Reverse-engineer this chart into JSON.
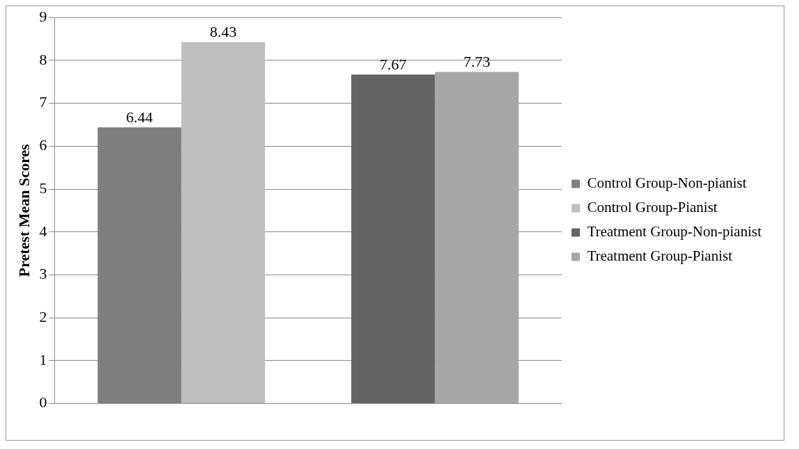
{
  "chart_data": {
    "type": "bar",
    "ylabel": "Pretest Mean Scores",
    "categories": [
      null,
      null
    ],
    "series": [
      {
        "name": "Control Group-Non-pianist",
        "color": "#7f7f7f",
        "values": [
          6.44,
          null
        ]
      },
      {
        "name": "Control Group-Pianist",
        "color": "#bfbfbf",
        "values": [
          8.43,
          null
        ]
      },
      {
        "name": "Treatment Group-Non-pianist",
        "color": "#636363",
        "values": [
          null,
          7.67
        ]
      },
      {
        "name": "Treatment Group-Pianist",
        "color": "#a6a6a6",
        "values": [
          null,
          7.73
        ]
      }
    ],
    "ylim": [
      0,
      9
    ],
    "yticks": [
      0,
      1,
      2,
      3,
      4,
      5,
      6,
      7,
      8,
      9
    ],
    "grid": "y",
    "legend": "right",
    "data_labels": true
  }
}
